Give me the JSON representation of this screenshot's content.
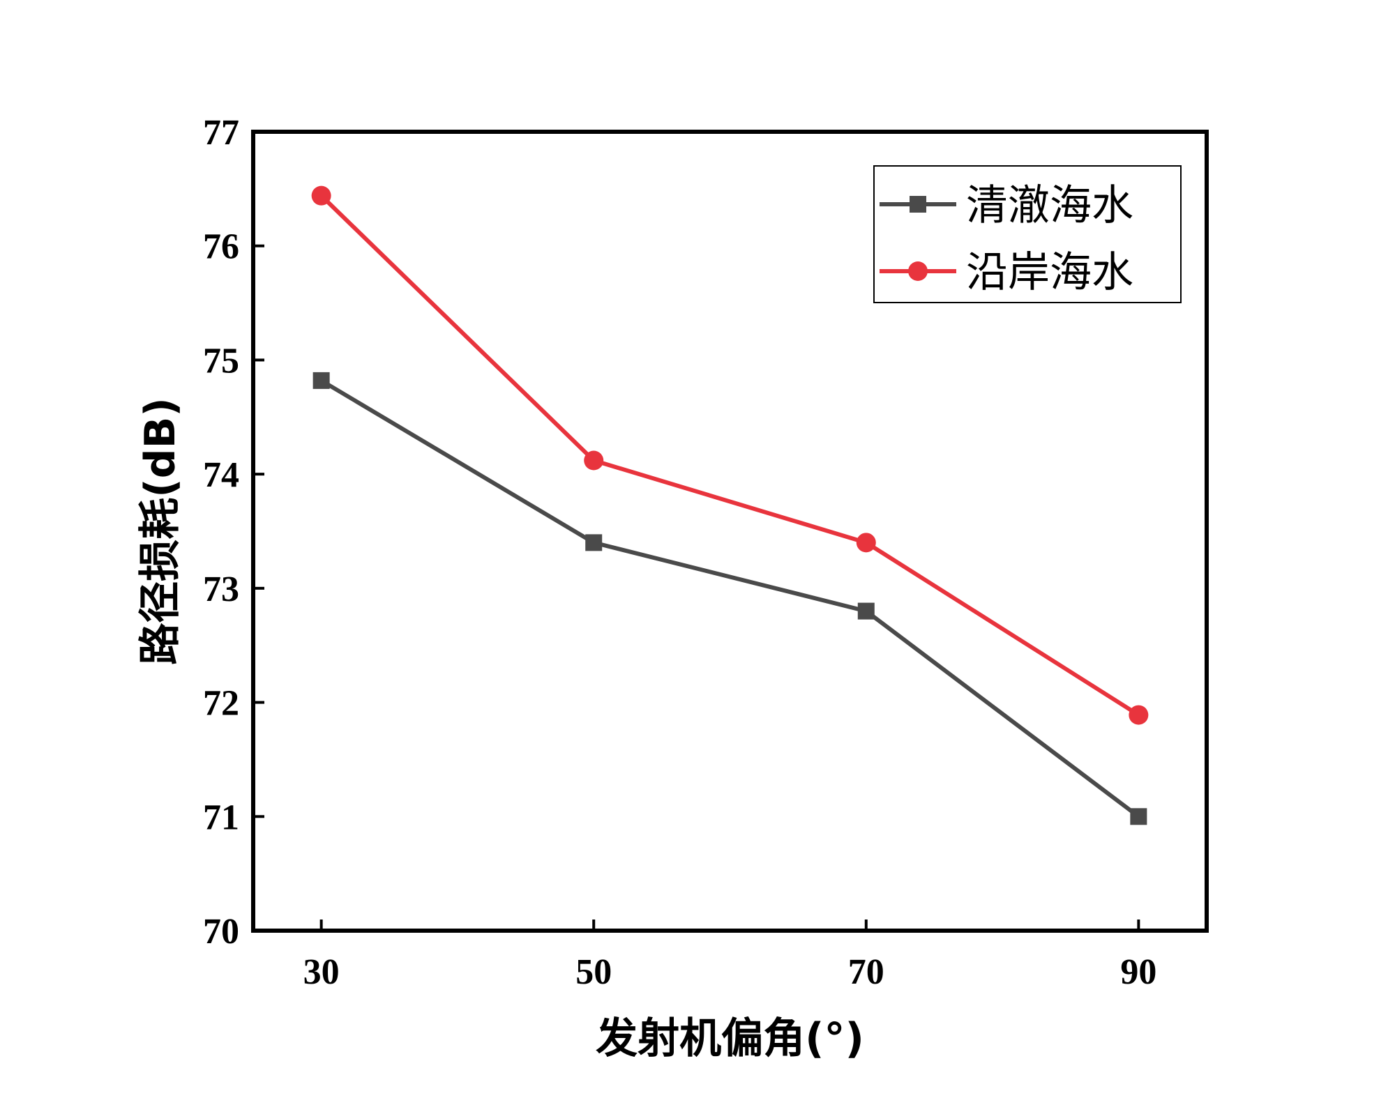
{
  "chart_data": {
    "type": "line",
    "x": [
      30,
      50,
      70,
      90
    ],
    "xlim": [
      25,
      95
    ],
    "ylim": [
      70,
      77
    ],
    "xticks": [
      30,
      50,
      70,
      90
    ],
    "yticks": [
      70,
      71,
      72,
      73,
      74,
      75,
      76,
      77
    ],
    "xlabel": "发射机偏角(°)",
    "ylabel": "路径损耗(dB)",
    "grid": false,
    "legend_position": "top-right",
    "series": [
      {
        "name": "清澈海水",
        "color": "#4a4a4a",
        "marker": "square",
        "values": [
          74.82,
          73.4,
          72.8,
          71.0
        ]
      },
      {
        "name": "沿岸海水",
        "color": "#e8343d",
        "marker": "circle",
        "values": [
          76.44,
          74.12,
          73.4,
          71.89
        ]
      }
    ]
  }
}
